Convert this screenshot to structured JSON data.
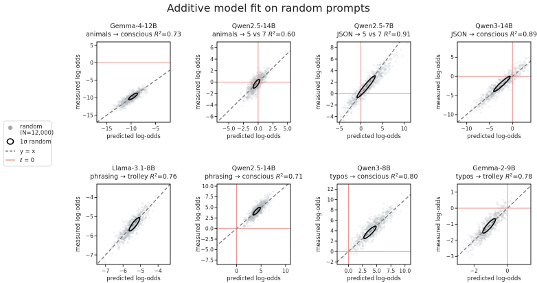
{
  "figure": {
    "title": "Additive model fit on random prompts",
    "r2_label": "R²="
  },
  "legend": {
    "items": [
      {
        "label": "random",
        "label2": "(N=12,000)",
        "kind": "scatter",
        "color": "#a8a8a8"
      },
      {
        "label": "1σ random",
        "kind": "ellipse",
        "color": "#000000"
      },
      {
        "label": "y = x",
        "kind": "dashed",
        "color": "#808080"
      },
      {
        "label": "ℓ = 0",
        "kind": "line",
        "color": "#e88a86"
      }
    ]
  },
  "colors": {
    "points": "#b4b8be",
    "diagonal": "#808080",
    "zero_line": "#e88a86",
    "ellipse": "#000000"
  },
  "chart_data": [
    {
      "type": "scatter",
      "model": "Gemma-4-12B",
      "task": "animals → conscious",
      "r2": "0.73",
      "xlabel": "predicted log-odds",
      "ylabel": "measured log-odds",
      "xlim": [
        -17,
        -2
      ],
      "ylim": [
        -17,
        6
      ],
      "xticks": [
        -15,
        -10,
        -5
      ],
      "yticks": [
        -15,
        -10,
        -5,
        0,
        5
      ],
      "zero_h": true,
      "zero_v": false,
      "cloud": {
        "cx": -10,
        "cy": -10,
        "sx": 1.3,
        "sy": 1.3,
        "rho": 0.86
      },
      "ellipse": {
        "cx": -9.6,
        "cy": -9.6,
        "sx": 0.9,
        "sy": 0.95,
        "rho": 0.85
      }
    },
    {
      "type": "scatter",
      "model": "Qwen2.5-14B",
      "task": "animals → 5 vs 7",
      "r2": "0.60",
      "xlabel": "predicted log-odds",
      "ylabel": "measured log-odds",
      "xlim": [
        -7,
        5.5
      ],
      "ylim": [
        -7,
        7
      ],
      "xticks": [
        -5.0,
        -2.5,
        0.0,
        2.5,
        5.0
      ],
      "yticks": [
        -6,
        -4,
        -2,
        0,
        2,
        4,
        6
      ],
      "xtick_decimals": 1,
      "zero_h": true,
      "zero_v": true,
      "cloud": {
        "cx": -0.3,
        "cy": -0.3,
        "sx": 0.9,
        "sy": 1.2,
        "rho": 0.78
      },
      "ellipse": {
        "cx": -0.3,
        "cy": -0.3,
        "sx": 0.55,
        "sy": 0.75,
        "rho": 0.77
      }
    },
    {
      "type": "scatter",
      "model": "Qwen2.5-7B",
      "task": "JSON → 5 vs 7",
      "r2": "0.91",
      "xlabel": "predicted log-odds",
      "ylabel": "measured log-odds",
      "xlim": [
        -5.5,
        11.5
      ],
      "ylim": [
        -5,
        9
      ],
      "xticks": [
        -5,
        0,
        5,
        10
      ],
      "yticks": [
        -4,
        -2,
        0,
        2,
        4,
        6,
        8
      ],
      "zero_h": true,
      "zero_v": true,
      "cloud": {
        "cx": 1.5,
        "cy": 1.3,
        "sx": 2.9,
        "sy": 2.5,
        "rho": 0.95
      },
      "ellipse": {
        "cx": 1.2,
        "cy": 1.2,
        "sx": 2.1,
        "sy": 1.9,
        "rho": 0.955
      }
    },
    {
      "type": "scatter",
      "model": "Qwen3-14B",
      "task": "JSON → conscious",
      "r2": "0.89",
      "xlabel": "predicted log-odds",
      "ylabel": "measured log-odds",
      "xlim": [
        -12,
        4
      ],
      "ylim": [
        -12,
        9
      ],
      "xticks": [
        -10,
        -5,
        0
      ],
      "yticks": [
        -10,
        -5,
        0,
        5
      ],
      "zero_h": true,
      "zero_v": true,
      "cloud": {
        "cx": -2.5,
        "cy": -2.3,
        "sx": 2.8,
        "sy": 3.0,
        "rho": 0.94
      },
      "ellipse": {
        "cx": -2.3,
        "cy": -2.0,
        "sx": 1.8,
        "sy": 2.0,
        "rho": 0.95
      }
    },
    {
      "type": "scatter",
      "model": "Llama-3.1-8B",
      "task": "phrasing → trolley",
      "r2": "0.76",
      "xlabel": "predicted log-odds",
      "ylabel": "measured log-odds",
      "xlim": [
        -7.5,
        -3.3
      ],
      "ylim": [
        -7.5,
        -3.3
      ],
      "xticks": [
        -7,
        -6,
        -5,
        -4
      ],
      "yticks": [
        -7,
        -6,
        -5,
        -4
      ],
      "zero_h": false,
      "zero_v": false,
      "cloud": {
        "cx": -5.5,
        "cy": -5.5,
        "sx": 0.45,
        "sy": 0.5,
        "rho": 0.87
      },
      "ellipse": {
        "cx": -5.35,
        "cy": -5.4,
        "sx": 0.3,
        "sy": 0.35,
        "rho": 0.87
      }
    },
    {
      "type": "scatter",
      "model": "Qwen2.5-14B",
      "task": "phrasing → conscious",
      "r2": "0.71",
      "xlabel": "predicted log-odds",
      "ylabel": "measured log-odds",
      "xlim": [
        -4,
        11
      ],
      "ylim": [
        -8.5,
        10.5
      ],
      "xticks": [
        0,
        5,
        10
      ],
      "yticks": [
        -7.5,
        -5.0,
        -2.5,
        0.0,
        2.5,
        5.0,
        7.5,
        10.0
      ],
      "ytick_decimals": 1,
      "zero_h": true,
      "zero_v": true,
      "cloud": {
        "cx": 4.3,
        "cy": 4.3,
        "sx": 1.1,
        "sy": 1.4,
        "rho": 0.84
      },
      "ellipse": {
        "cx": 4.1,
        "cy": 4.1,
        "sx": 0.75,
        "sy": 0.9,
        "rho": 0.84
      }
    },
    {
      "type": "scatter",
      "model": "Qwen3-8B",
      "task": "typos → conscious",
      "r2": "0.80",
      "xlabel": "predicted log-odds",
      "ylabel": "measured log-odds",
      "xlim": [
        -2,
        11
      ],
      "ylim": [
        -2.5,
        13
      ],
      "xticks": [
        0.0,
        2.5,
        5.0,
        7.5,
        10.0
      ],
      "yticks": [
        -2,
        0,
        2,
        4,
        6,
        8,
        10,
        12
      ],
      "xtick_decimals": 1,
      "zero_h": true,
      "zero_v": true,
      "cloud": {
        "cx": 4.2,
        "cy": 4.3,
        "sx": 1.8,
        "sy": 2.0,
        "rho": 0.89
      },
      "ellipse": {
        "cx": 3.8,
        "cy": 3.7,
        "sx": 1.1,
        "sy": 1.2,
        "rho": 0.88
      }
    },
    {
      "type": "scatter",
      "model": "Gemma-2-9B",
      "task": "typos → trolley",
      "r2": "0.78",
      "xlabel": "predicted log-odds",
      "ylabel": "measured log-odds",
      "xlim": [
        -3,
        1.4
      ],
      "ylim": [
        -3.5,
        1.5
      ],
      "xticks": [
        -2,
        0
      ],
      "yticks": [
        -3,
        -2,
        -1,
        0,
        1
      ],
      "zero_h": true,
      "zero_v": true,
      "cloud": {
        "cx": -1.1,
        "cy": -1.1,
        "sx": 0.55,
        "sy": 0.65,
        "rho": 0.88
      },
      "ellipse": {
        "cx": -1.1,
        "cy": -1.1,
        "sx": 0.38,
        "sy": 0.45,
        "rho": 0.88
      }
    }
  ]
}
